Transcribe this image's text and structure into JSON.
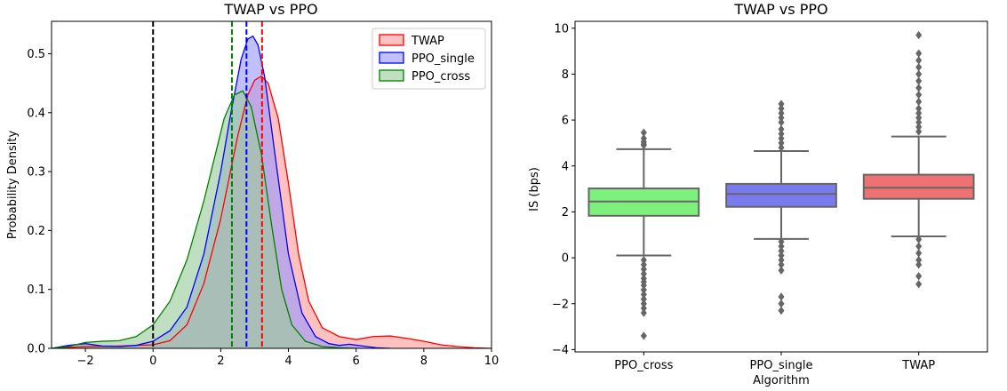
{
  "chart_data": [
    {
      "type": "area",
      "subtype": "kde",
      "title": "TWAP vs PPO",
      "xlabel": "",
      "ylabel": "Probability Density",
      "xlim": [
        -3,
        10
      ],
      "ylim": [
        0,
        0.555
      ],
      "xticks": [
        -2,
        0,
        2,
        4,
        6,
        8,
        10
      ],
      "yticks": [
        0.0,
        0.1,
        0.2,
        0.3,
        0.4,
        0.5
      ],
      "grid": false,
      "legend_position": "top-right",
      "series": [
        {
          "name": "TWAP",
          "color": "#ff0000",
          "fill": "#ff9999",
          "mean_line": 3.22,
          "x": [
            -3,
            -2,
            -1,
            0,
            0.5,
            1,
            1.5,
            2,
            2.5,
            2.8,
            3.0,
            3.2,
            3.4,
            3.7,
            4.0,
            4.3,
            4.6,
            5.0,
            5.5,
            6.0,
            6.5,
            7.0,
            7.5,
            8.0,
            8.5,
            9.0,
            9.5,
            10
          ],
          "y": [
            0.0,
            0.003,
            0.004,
            0.006,
            0.013,
            0.04,
            0.11,
            0.22,
            0.36,
            0.43,
            0.455,
            0.462,
            0.45,
            0.39,
            0.28,
            0.16,
            0.08,
            0.035,
            0.02,
            0.015,
            0.02,
            0.021,
            0.017,
            0.012,
            0.006,
            0.003,
            0.001,
            0.0
          ]
        },
        {
          "name": "PPO_single",
          "color": "#0000ff",
          "fill": "#9999ff",
          "mean_line": 2.76,
          "x": [
            -3,
            -2.5,
            -2,
            -1.5,
            -1,
            -0.5,
            0,
            0.5,
            1,
            1.5,
            2,
            2.3,
            2.6,
            2.8,
            2.95,
            3.1,
            3.3,
            3.6,
            4.0,
            4.4,
            4.8,
            5.2,
            5.5,
            5.8,
            6.2,
            6.6,
            7.0
          ],
          "y": [
            0.0,
            0.005,
            0.008,
            0.004,
            0.003,
            0.005,
            0.012,
            0.03,
            0.07,
            0.16,
            0.3,
            0.4,
            0.49,
            0.525,
            0.53,
            0.515,
            0.46,
            0.33,
            0.16,
            0.06,
            0.02,
            0.008,
            0.005,
            0.007,
            0.004,
            0.001,
            0.0
          ]
        },
        {
          "name": "PPO_cross",
          "color": "#008000",
          "fill": "#99cc99",
          "mean_line": 2.33,
          "x": [
            -3,
            -2.5,
            -2,
            -1.5,
            -1,
            -0.5,
            0,
            0.5,
            1,
            1.5,
            1.8,
            2.1,
            2.4,
            2.65,
            2.9,
            3.2,
            3.5,
            3.8,
            4.1,
            4.5,
            5.0,
            5.5,
            6.0
          ],
          "y": [
            0.0,
            0.003,
            0.01,
            0.012,
            0.013,
            0.02,
            0.04,
            0.08,
            0.15,
            0.25,
            0.32,
            0.39,
            0.43,
            0.437,
            0.41,
            0.33,
            0.21,
            0.1,
            0.04,
            0.012,
            0.003,
            0.001,
            0.0
          ]
        }
      ],
      "reference_lines": [
        {
          "x": 0,
          "color": "#000000"
        }
      ]
    },
    {
      "type": "box",
      "title": "TWAP vs PPO",
      "xlabel": "Algorithm",
      "ylabel": "IS (bps)",
      "ylim": [
        -4.1,
        10.3
      ],
      "yticks": [
        -4,
        -2,
        0,
        2,
        4,
        6,
        8,
        10
      ],
      "grid": false,
      "categories": [
        "PPO_cross",
        "PPO_single",
        "TWAP"
      ],
      "boxes": [
        {
          "name": "PPO_cross",
          "color": "#7ef07e",
          "q1": 1.83,
          "median": 2.45,
          "q3": 3.02,
          "whisker_low": 0.1,
          "whisker_high": 4.73,
          "outliers": [
            5.45,
            5.2,
            5.05,
            4.95,
            4.9,
            -0.1,
            -0.3,
            -0.5,
            -0.7,
            -0.9,
            -1.05,
            -1.2,
            -1.4,
            -1.6,
            -1.8,
            -2.0,
            -2.2,
            -2.4,
            -3.4
          ]
        },
        {
          "name": "PPO_single",
          "color": "#7a7aef",
          "q1": 2.22,
          "median": 2.78,
          "q3": 3.22,
          "whisker_low": 0.82,
          "whisker_high": 4.65,
          "outliers": [
            6.7,
            6.5,
            6.3,
            6.1,
            5.9,
            5.6,
            5.4,
            5.2,
            5.0,
            4.8,
            0.7,
            0.5,
            0.3,
            0.1,
            -0.1,
            -0.3,
            -0.55,
            -1.7,
            -2.0,
            -2.3
          ]
        },
        {
          "name": "TWAP",
          "color": "#ee7272",
          "q1": 2.57,
          "median": 3.05,
          "q3": 3.62,
          "whisker_low": 0.93,
          "whisker_high": 5.28,
          "outliers": [
            9.7,
            8.9,
            8.6,
            8.3,
            8.0,
            7.7,
            7.4,
            7.1,
            6.8,
            6.5,
            6.3,
            6.1,
            5.9,
            5.7,
            5.5,
            0.8,
            0.5,
            0.2,
            -0.1,
            -0.3,
            -0.8,
            -1.15
          ]
        }
      ]
    }
  ]
}
